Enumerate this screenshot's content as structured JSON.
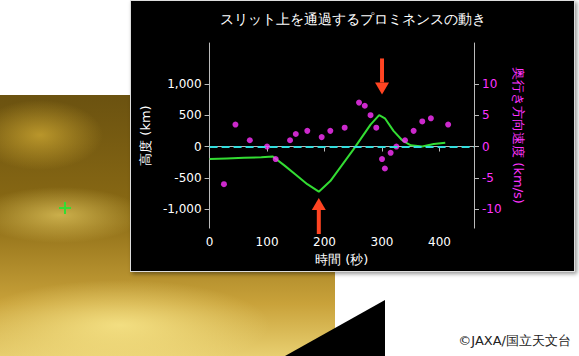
{
  "chart_data": {
    "type": "line",
    "title": "スリット上を通過するプロミネンスの動き",
    "x_label": "時間 (秒)",
    "y_label": "高度 (km)",
    "y2_label": "奥行き方向速度 (km/s)",
    "xlim": [
      0,
      460
    ],
    "xticks": [
      0,
      100,
      200,
      300,
      400
    ],
    "ylim": [
      -1300,
      1650
    ],
    "yticks": [
      {
        "value": -1000,
        "label": "-1,000"
      },
      -500,
      0,
      500,
      {
        "value": 1000,
        "label": "1,000"
      }
    ],
    "y2lim": [
      -13,
      16.5
    ],
    "y2ticks": [
      -10,
      -5,
      0,
      5,
      10
    ],
    "grid": false,
    "series": [
      {
        "type": "line",
        "color": "#33dd33",
        "line_style": "solid",
        "x": [
          0,
          30,
          60,
          90,
          110,
          130,
          150,
          170,
          190,
          210,
          230,
          250,
          265,
          280,
          295,
          305,
          320,
          335,
          350,
          370,
          390,
          410
        ],
        "values": [
          -200,
          -190,
          -180,
          -170,
          -160,
          -300,
          -450,
          -600,
          -720,
          -550,
          -300,
          -50,
          150,
          350,
          500,
          450,
          250,
          100,
          20,
          0,
          40,
          60
        ]
      },
      {
        "type": "scatter",
        "color": "#ff33ff",
        "marker": "circle",
        "axis": "y2",
        "x": [
          25,
          45,
          70,
          100,
          115,
          140,
          150,
          170,
          195,
          210,
          235,
          260,
          270,
          280,
          290,
          300,
          305,
          315,
          325,
          340,
          355,
          370,
          385,
          415
        ],
        "values": [
          -6,
          3.5,
          1,
          0,
          -2,
          1,
          2,
          2.5,
          1.5,
          2.5,
          3,
          7,
          6.5,
          5,
          3,
          -2,
          -3.5,
          -1,
          0,
          1,
          2.5,
          4,
          4.5,
          3.5
        ]
      }
    ],
    "reference_line": {
      "value": 0,
      "color": "#33dddd",
      "line_style": "dashed"
    },
    "arrows": {
      "x": [
        190,
        300
      ],
      "y": [
        -820,
        830
      ],
      "color": "#ff4422"
    }
  },
  "credit": "©JAXA/国立天文台"
}
